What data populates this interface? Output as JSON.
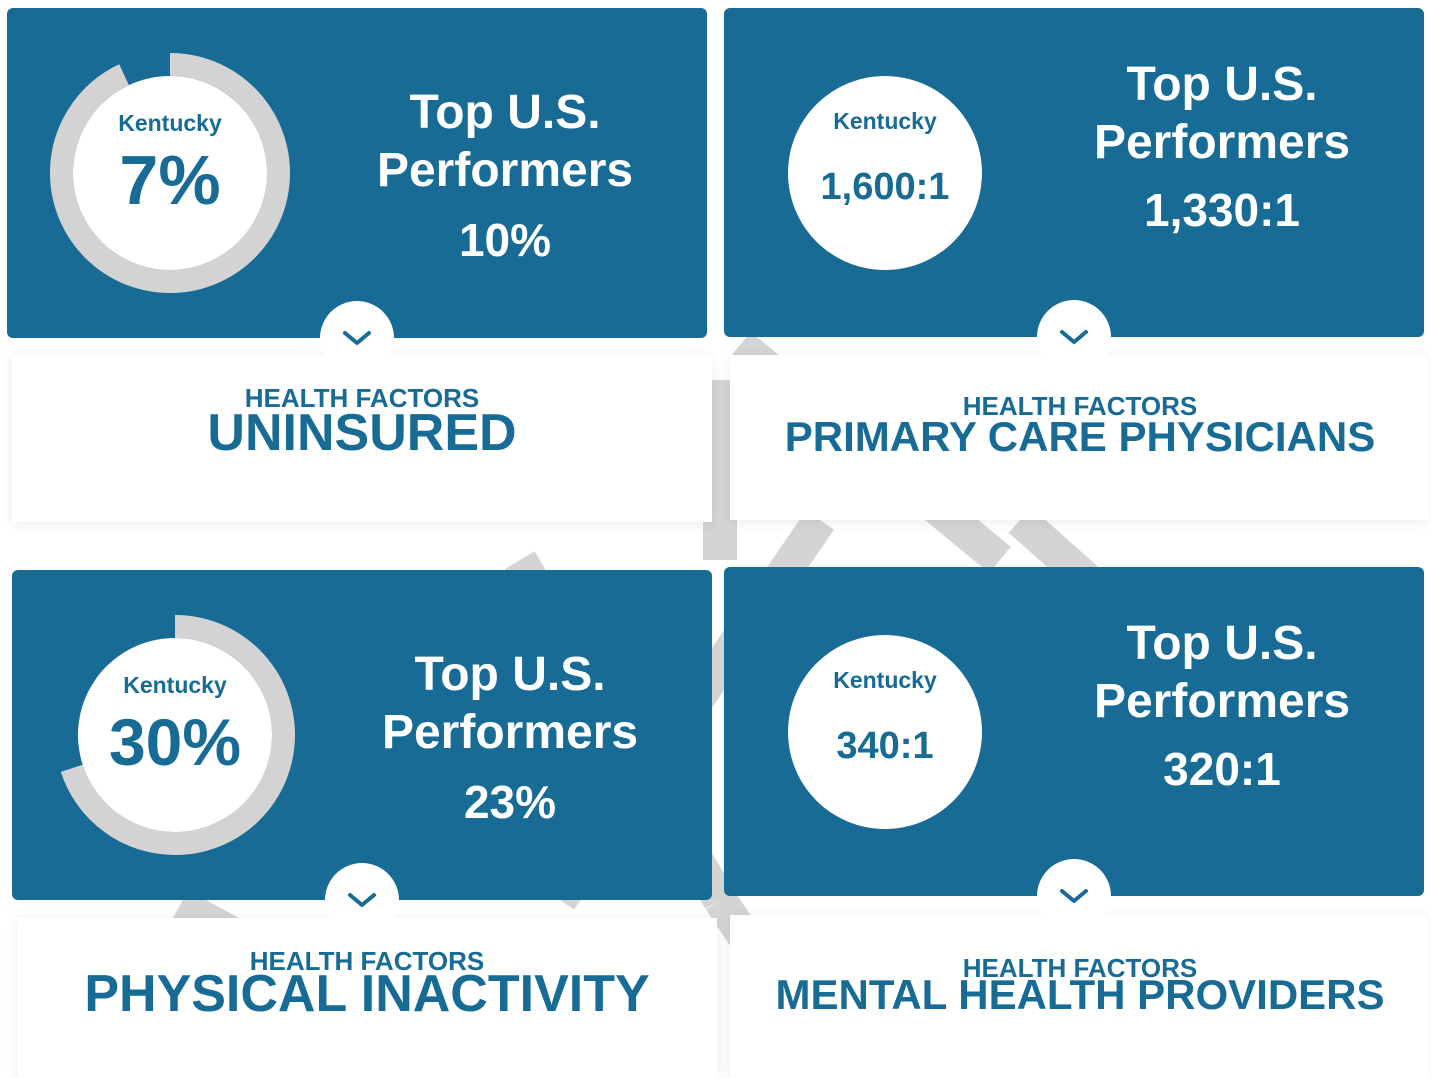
{
  "cards": [
    {
      "category": "HEALTH FACTORS",
      "title": "UNINSURED",
      "state_label": "Kentucky",
      "state_value": 7,
      "state_value_label": "7%",
      "top_label": "Top U.S. Performers",
      "top_value": "10%"
    },
    {
      "category": "HEALTH FACTORS",
      "title": "PRIMARY CARE PHYSICIANS",
      "state_label": "Kentucky",
      "state_value": "1,600:1",
      "top_label": "Top U.S. Performers",
      "top_value": "1,330:1"
    },
    {
      "category": "HEALTH FACTORS",
      "title": "PHYSICAL INACTIVITY",
      "state_label": "Kentucky",
      "state_value": 30,
      "state_value_label": "30%",
      "top_label": "Top U.S. Performers",
      "top_value": "23%"
    },
    {
      "category": "HEALTH FACTORS",
      "title": "MENTAL HEALTH PROVIDERS",
      "state_label": "Kentucky",
      "state_value": "340:1",
      "top_label": "Top U.S. Performers",
      "top_value": "320:1"
    }
  ]
}
